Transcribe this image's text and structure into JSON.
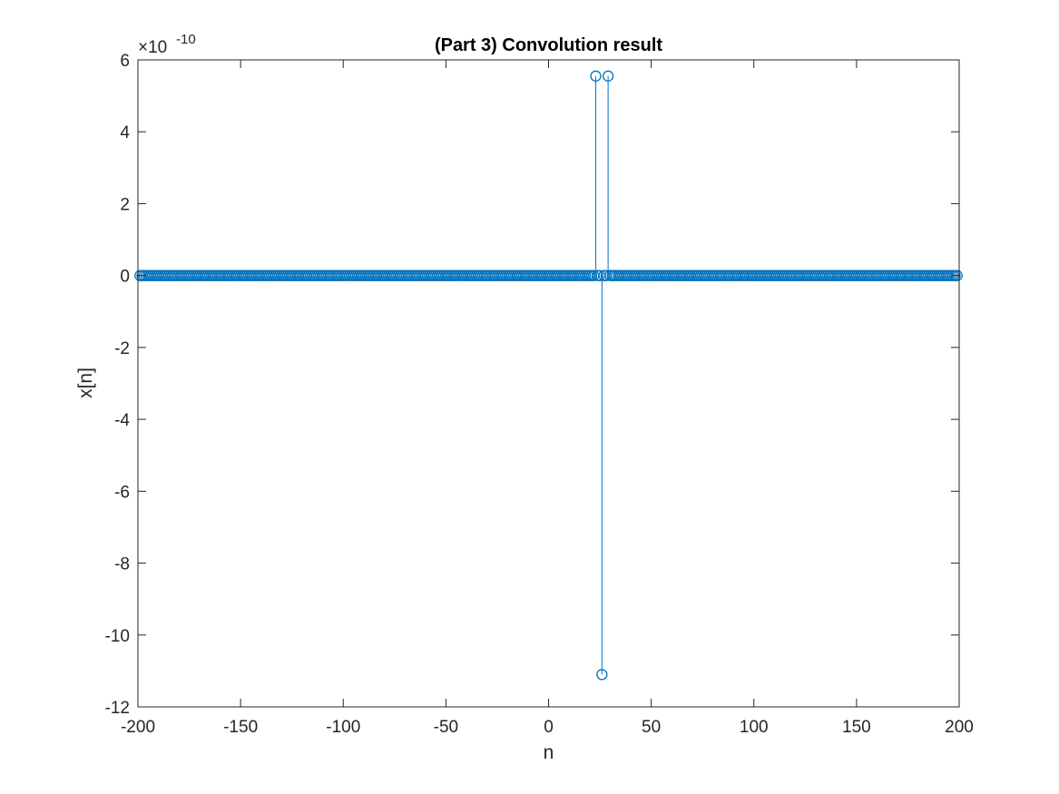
{
  "chart_data": {
    "type": "stem",
    "title": "(Part 3) Convolution result",
    "xlabel": "n",
    "ylabel": "x[n]",
    "exponent_multiplier": "×10",
    "exponent_power": "-10",
    "xlim": [
      -200,
      200
    ],
    "ylim": [
      -12,
      6
    ],
    "xticks": [
      -200,
      -150,
      -100,
      -50,
      0,
      50,
      100,
      150,
      200
    ],
    "yticks": [
      -12,
      -10,
      -8,
      -6,
      -4,
      -2,
      0,
      2,
      4,
      6
    ],
    "x_range": [
      -199,
      199
    ],
    "baseline_value": 0,
    "nonzero_points": [
      {
        "x": 23,
        "y": 5.55
      },
      {
        "x": 26,
        "y": -11.1
      },
      {
        "x": 29,
        "y": 5.55
      }
    ],
    "series_color": "#0072BD",
    "grid": false
  }
}
